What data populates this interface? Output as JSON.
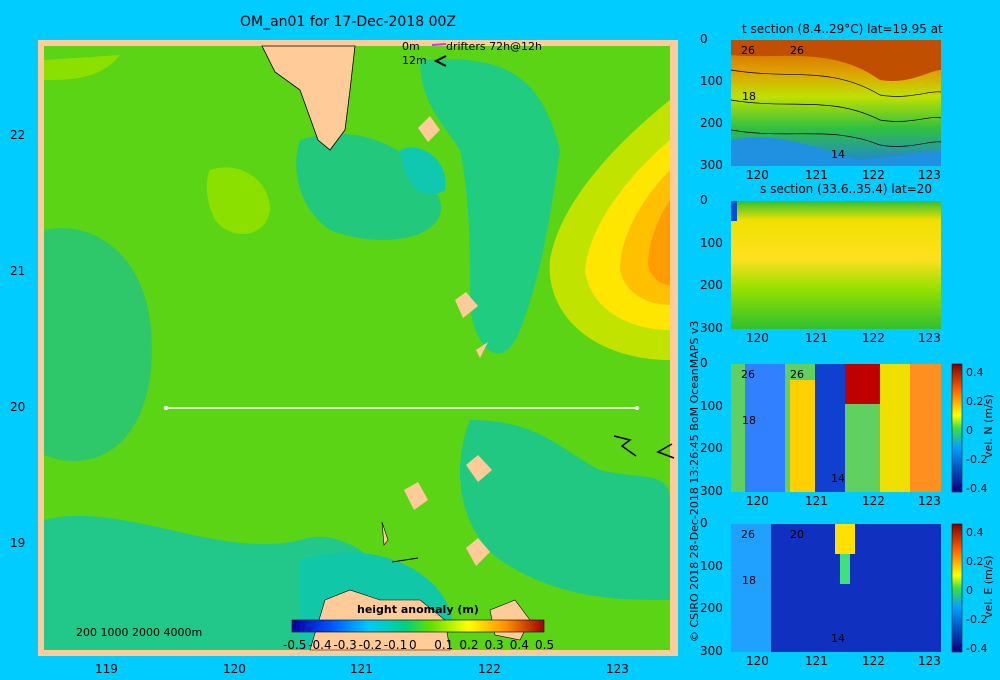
{
  "main_title": "OM_an01 for 17-Dec-2018 00Z",
  "drifters_legend": {
    "line1": "0m",
    "line1b": "drifters 72h@12h",
    "line2": "12m"
  },
  "depth_scale": "200  1000  2000  4000m",
  "colorbar": {
    "label": "height anomaly (m)",
    "ticks": [
      "-0.5",
      "-0.4",
      "-0.3",
      "-0.2",
      "-0.1",
      "0",
      "0.1",
      "0.2",
      "0.3",
      "0.4",
      "0.5"
    ]
  },
  "map": {
    "x_ticks": [
      "119",
      "120",
      "121",
      "122",
      "123"
    ],
    "y_ticks": [
      "22",
      "21",
      "20",
      "19"
    ],
    "section_line": {
      "lon_start": 119.5,
      "lon_end": 123.2,
      "lat": 20.0
    }
  },
  "panels": [
    {
      "title": "t section (8.4..29°C) lat=19.95 at",
      "contours": [
        "26",
        "26",
        "18",
        "14"
      ]
    },
    {
      "title": "s section (33.6..35.4) lat=20",
      "contours": []
    },
    {
      "title": "",
      "contours": [
        "26",
        "26",
        "18",
        "14"
      ],
      "cbar_label": "vel. N (m/s)",
      "cbar_ticks": [
        "0.4",
        "0.2",
        "0",
        "-0.2",
        "-0.4"
      ]
    },
    {
      "title": "",
      "contours": [
        "26",
        "20",
        "18",
        "14"
      ],
      "cbar_label": "vel. E (m/s)",
      "cbar_ticks": [
        "0.4",
        "0.2",
        "0",
        "-0.2",
        "-0.4"
      ]
    }
  ],
  "panel_axes": {
    "y_ticks": [
      "0",
      "100",
      "200",
      "300"
    ],
    "x_ticks": [
      "120",
      "121",
      "122",
      "123"
    ]
  },
  "credit": "© CSIRO 2018   28-Dec-2018 13:26:45 BoM OceanMAPS v3"
}
